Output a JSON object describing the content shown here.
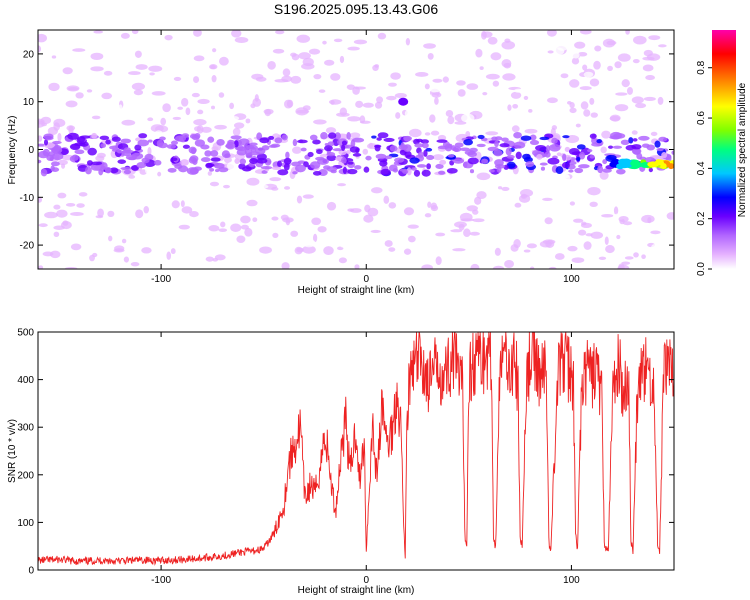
{
  "figure_title": "S196.2025.095.13.43.G06",
  "chart_data": [
    {
      "type": "heatmap",
      "xlabel": "Height of straight line (km)",
      "ylabel": "Frequency (Hz)",
      "xlim": [
        -160,
        150
      ],
      "ylim": [
        -25,
        25
      ],
      "xticks": [
        "-100",
        "0",
        "100"
      ],
      "yticks": [
        "20",
        "10",
        "0",
        "-10",
        "-20"
      ],
      "colorbar": {
        "label": "Normalized spectral amplitude",
        "ticks": [
          "0.0",
          "0.2",
          "0.4",
          "0.6",
          "0.8"
        ],
        "range": [
          0,
          0.95
        ],
        "colors": [
          "#ffffff",
          "#e6b3ff",
          "#b266ff",
          "#6a00ff",
          "#0000ff",
          "#00c8ff",
          "#00ff7f",
          "#7fff00",
          "#ffff00",
          "#ff8c00",
          "#ff0000",
          "#ff00aa"
        ]
      },
      "features": {
        "main_band_center_hz": -1,
        "main_band_halfwidth_hz": 4,
        "peak_region_x_km": [
          120,
          150
        ],
        "peak_frequency_hz": -3,
        "peak_amplitude": 0.85,
        "secondary_peak": {
          "x_km": 18,
          "frequency_hz": 10,
          "amplitude": 0.3
        }
      }
    },
    {
      "type": "line",
      "xlabel": "Height of straight line (km)",
      "ylabel": "SNR (10 * v/v)",
      "xlim": [
        -160,
        150
      ],
      "ylim": [
        0,
        500
      ],
      "xticks": [
        "-100",
        "0",
        "100"
      ],
      "yticks": [
        "0",
        "100",
        "200",
        "300",
        "400",
        "500"
      ],
      "color": "#ee2222",
      "series": [
        {
          "x": [
            -160,
            -150,
            -140,
            -130,
            -120,
            -110,
            -100,
            -90,
            -80,
            -70,
            -60,
            -55,
            -50,
            -45,
            -40,
            -38,
            -35,
            -32,
            -30,
            -27,
            -25,
            -22,
            -20,
            -17,
            -15,
            -12,
            -10,
            -8,
            -5,
            -3,
            -1,
            0,
            3,
            5,
            8,
            10,
            13,
            15,
            17,
            18,
            19,
            20,
            22,
            25,
            28,
            30,
            33,
            35,
            38,
            40,
            43,
            45,
            47,
            48,
            49,
            50,
            53,
            55,
            58,
            60,
            61,
            62,
            63,
            65,
            68,
            70,
            73,
            74,
            75,
            76,
            78,
            80,
            83,
            85,
            87,
            88,
            89,
            90,
            93,
            95,
            98,
            100,
            101,
            102,
            103,
            105,
            108,
            110,
            112,
            114,
            115,
            116,
            118,
            120,
            123,
            125,
            127,
            128,
            129,
            130,
            132,
            135,
            138,
            140,
            141,
            142,
            143,
            145,
            148,
            150
          ],
          "y": [
            20,
            22,
            18,
            20,
            19,
            21,
            20,
            22,
            25,
            30,
            38,
            40,
            45,
            75,
            140,
            220,
            260,
            300,
            150,
            180,
            160,
            230,
            290,
            180,
            120,
            260,
            320,
            200,
            300,
            180,
            280,
            40,
            310,
            200,
            350,
            260,
            300,
            380,
            300,
            120,
            30,
            350,
            410,
            440,
            430,
            390,
            410,
            440,
            400,
            430,
            450,
            400,
            380,
            80,
            50,
            420,
            440,
            460,
            440,
            470,
            420,
            80,
            45,
            410,
            460,
            440,
            420,
            380,
            70,
            50,
            400,
            450,
            430,
            410,
            420,
            380,
            60,
            40,
            390,
            440,
            430,
            410,
            400,
            70,
            45,
            380,
            420,
            400,
            430,
            380,
            350,
            55,
            38,
            370,
            430,
            380,
            400,
            390,
            60,
            40,
            350,
            420,
            410,
            380,
            270,
            50,
            40,
            420,
            450,
            400
          ]
        }
      ]
    }
  ]
}
